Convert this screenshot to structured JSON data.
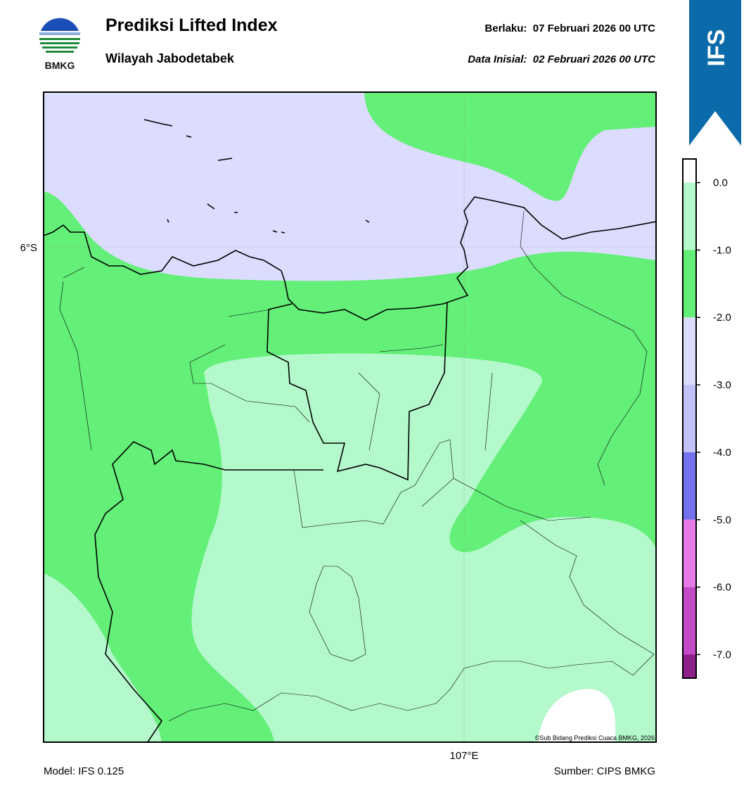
{
  "header": {
    "logo_text": "BMKG",
    "title": "Prediksi Lifted Index",
    "subtitle": "Wilayah Jabodetabek",
    "valid": "Berlaku:  07 Februari 2026 00 UTC",
    "init": "Data Inisial:  02 Februari 2026 00 UTC",
    "badge": "IFS"
  },
  "map": {
    "lat_label": "6°S",
    "lon_label": "107°E",
    "credit": "©Sub Bidang Prediksi Cuaca BMKG, 2026"
  },
  "colorbar": {
    "lim": [
      -7.35,
      0.35
    ],
    "bounds": [
      0.35,
      0,
      -1,
      -2,
      -3,
      -4,
      -5,
      -6,
      -7,
      -7.35
    ],
    "colors": [
      "#ffffff",
      "#b4f9cb",
      "#63ef78",
      "#dcdcfe",
      "#c2c2fb",
      "#7272ee",
      "#e67ae6",
      "#c24ac6",
      "#8e208c"
    ],
    "ticks": [
      {
        "value": 0,
        "label": "0.0"
      },
      {
        "value": -1,
        "label": "-1.0"
      },
      {
        "value": -2,
        "label": "-2.0"
      },
      {
        "value": -3,
        "label": "-3.0"
      },
      {
        "value": -4,
        "label": "-4.0"
      },
      {
        "value": -5,
        "label": "-5.0"
      },
      {
        "value": -6,
        "label": "-6.0"
      },
      {
        "value": -7,
        "label": "-7.0"
      }
    ]
  },
  "footer": {
    "model": "Model: IFS 0.125",
    "source": "Sumber: CIPS BMKG"
  }
}
